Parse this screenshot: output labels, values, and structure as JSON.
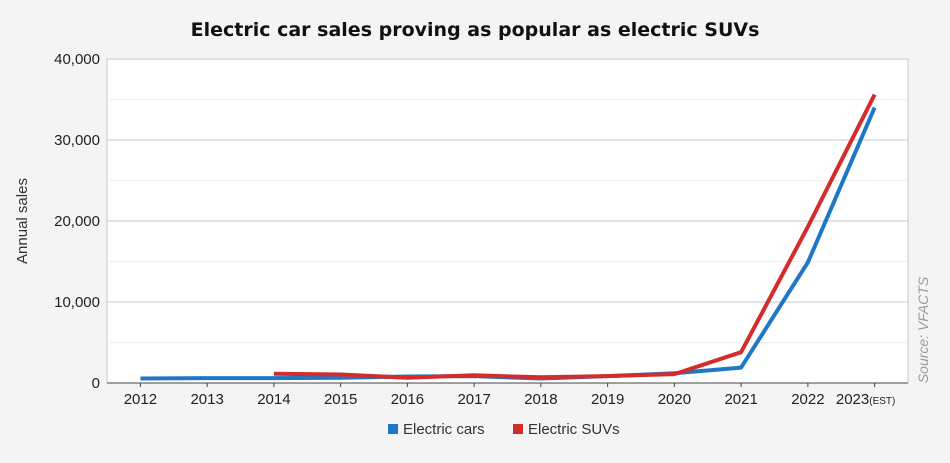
{
  "chart_data": {
    "type": "line",
    "title": "Electric car sales proving as popular as electric SUVs",
    "ylabel": "Annual sales",
    "xlabel": "",
    "source": "Source: VFACTS",
    "categories": [
      "2012",
      "2013",
      "2014",
      "2015",
      "2016",
      "2017",
      "2018",
      "2019",
      "2020",
      "2021",
      "2022",
      "2023"
    ],
    "last_category_suffix": "(EST)",
    "ylim": [
      0,
      40000
    ],
    "y_ticks": [
      0,
      10000,
      20000,
      30000,
      40000
    ],
    "y_tick_labels": [
      "0",
      "10,000",
      "20,000",
      "30,000",
      "40,000"
    ],
    "grid": "horizontal",
    "legend": "bottom-center",
    "series": [
      {
        "name": "Electric cars",
        "color": "#1f77c8",
        "values": [
          550,
          600,
          600,
          650,
          800,
          850,
          550,
          850,
          1200,
          1900,
          14900,
          34000
        ]
      },
      {
        "name": "Electric SUVs",
        "color": "#d42b2b",
        "values": [
          null,
          null,
          1150,
          1050,
          650,
          950,
          700,
          850,
          1100,
          3800,
          19300,
          35600
        ]
      }
    ]
  }
}
